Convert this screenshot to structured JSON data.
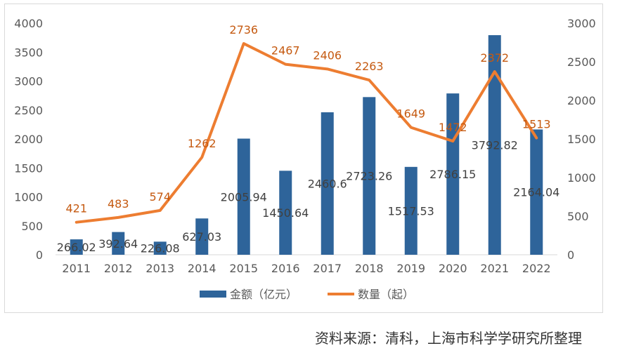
{
  "chart_data": {
    "type": "bar",
    "title": "",
    "categories": [
      "2011",
      "2012",
      "2013",
      "2014",
      "2015",
      "2016",
      "2017",
      "2018",
      "2019",
      "2020",
      "2021",
      "2022"
    ],
    "series": [
      {
        "name": "金额（亿元）",
        "type": "bar",
        "axis": "left",
        "color": "#2e649a",
        "values": [
          266.02,
          392.64,
          226.08,
          627.03,
          2005.94,
          1450.64,
          2460.6,
          2723.26,
          1517.53,
          2786.15,
          3792.82,
          2164.04
        ],
        "labels": [
          "266.02",
          "392.64",
          "226.08",
          "627.03",
          "2005.94",
          "1450.64",
          "2460.6",
          "2723.26",
          "1517.53",
          "2786.15",
          "3792.82",
          "2164.04"
        ]
      },
      {
        "name": "数量（起）",
        "type": "line",
        "axis": "right",
        "color": "#ed7d31",
        "values": [
          421,
          483,
          574,
          1262,
          2736,
          2467,
          2406,
          2263,
          1649,
          1472,
          2372,
          1513
        ],
        "labels": [
          "421",
          "483",
          "574",
          "1262",
          "2736",
          "2467",
          "2406",
          "2263",
          "1649",
          "1472",
          "2372",
          "1513"
        ]
      }
    ],
    "left_axis": {
      "ylim": [
        0,
        4000
      ],
      "ticks": [
        "0",
        "500",
        "1000",
        "1500",
        "2000",
        "2500",
        "3000",
        "3500",
        "4000"
      ]
    },
    "right_axis": {
      "ylim": [
        0,
        3000
      ],
      "ticks": [
        "0",
        "500",
        "1000",
        "1500",
        "2000",
        "2500",
        "3000"
      ]
    },
    "legend_position": "bottom"
  },
  "legend": {
    "bar_label": "金额（亿元）",
    "line_label": "数量（起）"
  },
  "source": "资料来源：清科，上海市科学学研究所整理",
  "colors": {
    "bar": "#2e649a",
    "line": "#ed7d31",
    "bar_label": "#404040",
    "line_label": "#c55a11",
    "axis_text": "#595959",
    "axis_line": "#d9d9d9"
  }
}
